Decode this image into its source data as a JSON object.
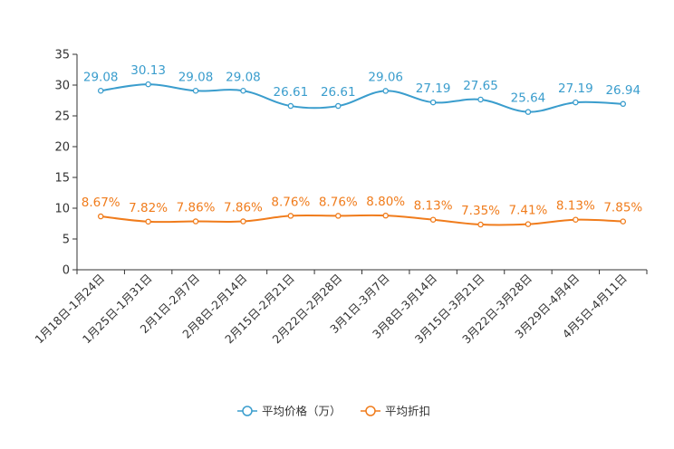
{
  "chart_data": {
    "type": "line",
    "title": "",
    "xlabel": "",
    "ylabel": "",
    "ylim": [
      0,
      35
    ],
    "yticks": [
      0,
      5,
      10,
      15,
      20,
      25,
      30,
      35
    ],
    "grid": false,
    "legend_position": "bottom-center",
    "categories": [
      "1月18日-1月24日",
      "1月25日-1月31日",
      "2月1日-2月7日",
      "2月8日-2月14日",
      "2月15日-2月21日",
      "2月22日-2月28日",
      "3月1日-3月7日",
      "3月8日-3月14日",
      "3月15日-3月21日",
      "3月22日-3月28日",
      "3月29日-4月4日",
      "4月5日-4月11日"
    ],
    "series": [
      {
        "name": "平均价格（万）",
        "color": "#3a9dcd",
        "values": [
          29.08,
          30.13,
          29.08,
          29.08,
          26.61,
          26.61,
          29.06,
          27.19,
          27.65,
          25.64,
          27.19,
          26.94
        ],
        "labels": [
          "29.08",
          "30.13",
          "29.08",
          "29.08",
          "26.61",
          "26.61",
          "29.06",
          "27.19",
          "27.65",
          "25.64",
          "27.19",
          "26.94"
        ]
      },
      {
        "name": "平均折扣",
        "color": "#f07c1c",
        "values": [
          8.67,
          7.82,
          7.86,
          7.86,
          8.76,
          8.76,
          8.8,
          8.13,
          7.35,
          7.41,
          8.13,
          7.85
        ],
        "labels": [
          "8.67%",
          "7.82%",
          "7.86%",
          "7.86%",
          "8.76%",
          "8.76%",
          "8.80%",
          "8.13%",
          "7.35%",
          "7.41%",
          "8.13%",
          "7.85%"
        ]
      }
    ]
  }
}
